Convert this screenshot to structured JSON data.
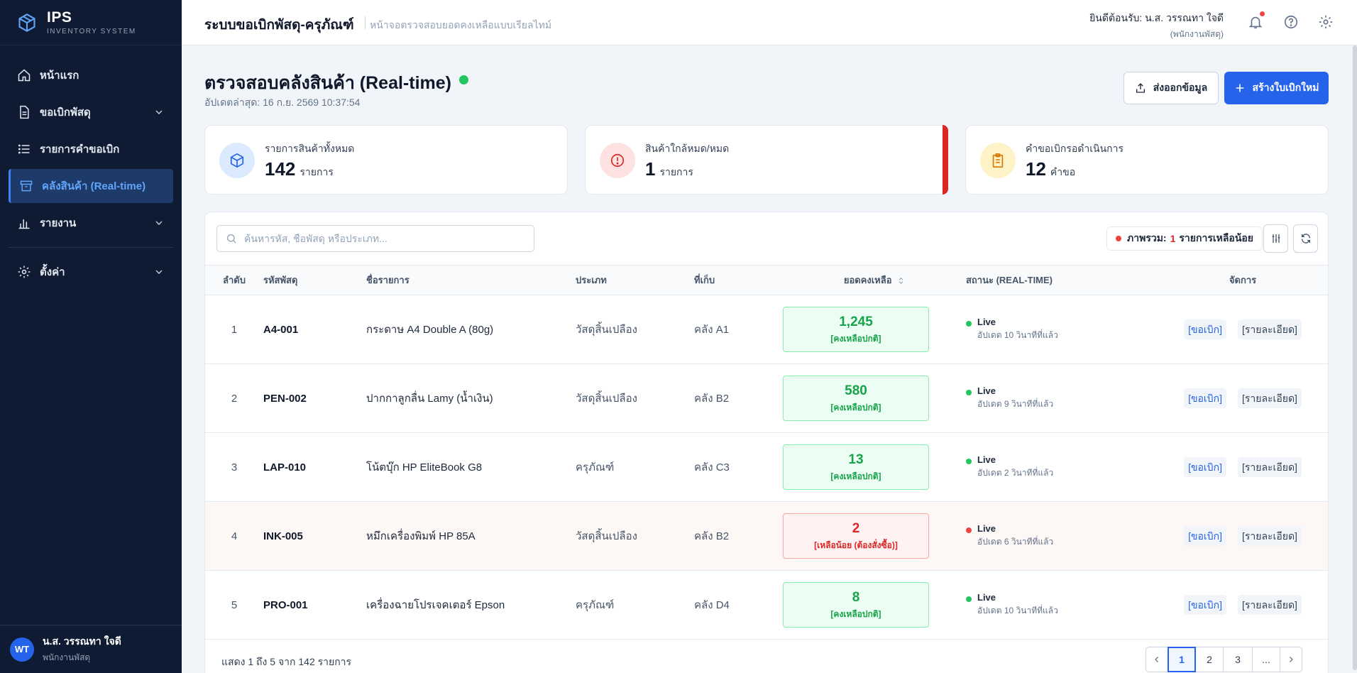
{
  "brand": {
    "name": "IPS",
    "tagline": "INVENTORY SYSTEM"
  },
  "sidebar": {
    "items": [
      {
        "label": "หน้าแรก",
        "icon": "home-icon",
        "active": false,
        "has_submenu": false
      },
      {
        "label": "ขอเบิกพัสดุ",
        "icon": "document-icon",
        "active": false,
        "has_submenu": true
      },
      {
        "label": "รายการคำขอเบิก",
        "icon": "list-icon",
        "active": false,
        "has_submenu": false
      },
      {
        "label": "คลังสินค้า (Real-time)",
        "icon": "archive-icon",
        "active": true,
        "has_submenu": false
      },
      {
        "label": "รายงาน",
        "icon": "bar-chart-icon",
        "active": false,
        "has_submenu": true
      },
      {
        "label": "ตั้งค่า",
        "icon": "gear-icon",
        "active": false,
        "has_submenu": true
      }
    ],
    "user": {
      "initials": "WT",
      "name": "น.ส. วรรณทา ใจดี",
      "role": "พนักงานพัสดุ"
    }
  },
  "header": {
    "title": "ระบบขอเบิกพัสดุ-ครุภัณฑ์",
    "subtitle": "หน้าจอตรวจสอบยอดคงเหลือแบบเรียลไทม์",
    "welcome": "ยินดีต้อนรับ: น.ส. วรรณทา ใจดี",
    "welcome_role": "(พนักงานพัสดุ)"
  },
  "page": {
    "title": "ตรวจสอบคลังสินค้า (Real-time)",
    "updated": "อัปเดตล่าสุด: 16 ก.ย. 2569 10:37:54",
    "export_label": "ส่งออกข้อมูล",
    "create_label": "สร้างใบเบิกใหม่"
  },
  "stats": [
    {
      "label": "รายการสินค้าทั้งหมด",
      "value": "142",
      "unit": "รายการ",
      "icon": "box-icon",
      "color": "#2563eb"
    },
    {
      "label": "สินค้าใกล้หมด/หมด",
      "value": "1",
      "unit": "รายการ",
      "icon": "alert-circle-icon",
      "color": "#dc2626"
    },
    {
      "label": "คำขอเบิกรอดำเนินการ",
      "value": "12",
      "unit": "คำขอ",
      "icon": "clipboard-icon",
      "color": "#d97706"
    }
  ],
  "table": {
    "search_placeholder": "ค้นหารหัส, ชื่อพัสดุ หรือประเภท...",
    "overview": {
      "prefix": "ภาพรวม:",
      "count": "1",
      "suffix": "รายการเหลือน้อย"
    },
    "headers": [
      "ลำดับ",
      "รหัสพัสดุ",
      "ชื่อรายการ",
      "ประเภท",
      "ที่เก็บ",
      "ยอดคงเหลือ",
      "สถานะ (REAL-TIME)",
      "จัดการ"
    ],
    "rows": [
      {
        "no": "1",
        "code": "A4-001",
        "name": "กระดาษ A4 Double A (80g)",
        "category": "วัสดุสิ้นเปลือง",
        "location": "คลัง A1",
        "stock": "1,245",
        "note": "[คงเหลือปกติ]",
        "low": false,
        "status": "Live",
        "updated": "อัปเดต 10 วินาทีที่แล้ว"
      },
      {
        "no": "2",
        "code": "PEN-002",
        "name": "ปากกาลูกลื่น Lamy (น้ำเงิน)",
        "category": "วัสดุสิ้นเปลือง",
        "location": "คลัง B2",
        "stock": "580",
        "note": "[คงเหลือปกติ]",
        "low": false,
        "status": "Live",
        "updated": "อัปเดต 9 วินาทีที่แล้ว"
      },
      {
        "no": "3",
        "code": "LAP-010",
        "name": "โน้ตบุ๊ก HP EliteBook G8",
        "category": "ครุภัณฑ์",
        "location": "คลัง C3",
        "stock": "13",
        "note": "[คงเหลือปกติ]",
        "low": false,
        "status": "Live",
        "updated": "อัปเดต 2 วินาทีที่แล้ว"
      },
      {
        "no": "4",
        "code": "INK-005",
        "name": "หมึกเครื่องพิมพ์ HP 85A",
        "category": "วัสดุสิ้นเปลือง",
        "location": "คลัง B2",
        "stock": "2",
        "note": "[เหลือน้อย (ต้องสั่งซื้อ)]",
        "low": true,
        "status": "Live",
        "updated": "อัปเดต 6 วินาทีที่แล้ว"
      },
      {
        "no": "5",
        "code": "PRO-001",
        "name": "เครื่องฉายโปรเจคเตอร์ Epson",
        "category": "ครุภัณฑ์",
        "location": "คลัง D4",
        "stock": "8",
        "note": "[คงเหลือปกติ]",
        "low": false,
        "status": "Live",
        "updated": "อัปเดต 10 วินาทีที่แล้ว"
      }
    ],
    "action_request": "[ขอเบิก]",
    "action_detail": "[รายละเอียด]"
  },
  "pagination": {
    "summary": "แสดง 1 ถึง 5 จาก 142 รายการ",
    "pages": [
      "1",
      "2",
      "3",
      "..."
    ],
    "current": "1"
  },
  "colors": {
    "sidebar_bg": "#0f1b33",
    "accent": "#2563eb",
    "ok": "#16a34a",
    "danger": "#dc2626",
    "live_dot": "#22c55e"
  }
}
